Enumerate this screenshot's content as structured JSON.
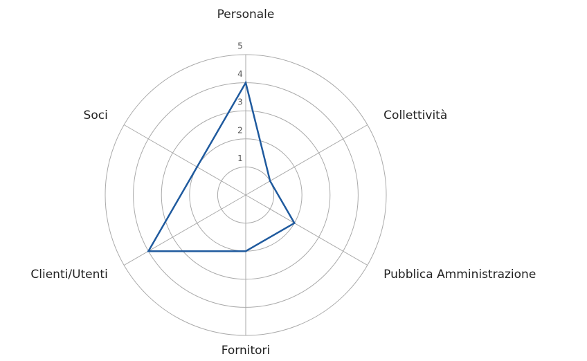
{
  "chart_data": {
    "type": "radar",
    "categories": [
      "Personale",
      "Collettività",
      "Pubblica Amministrazione",
      "Fornitori",
      "Clienti/Utenti",
      "Soci"
    ],
    "values": [
      4,
      1,
      2,
      2,
      4,
      2
    ],
    "color": "#1f5a9e",
    "rlim": [
      0,
      5
    ],
    "rticks": [
      1,
      2,
      3,
      4,
      5
    ],
    "grid": true
  }
}
